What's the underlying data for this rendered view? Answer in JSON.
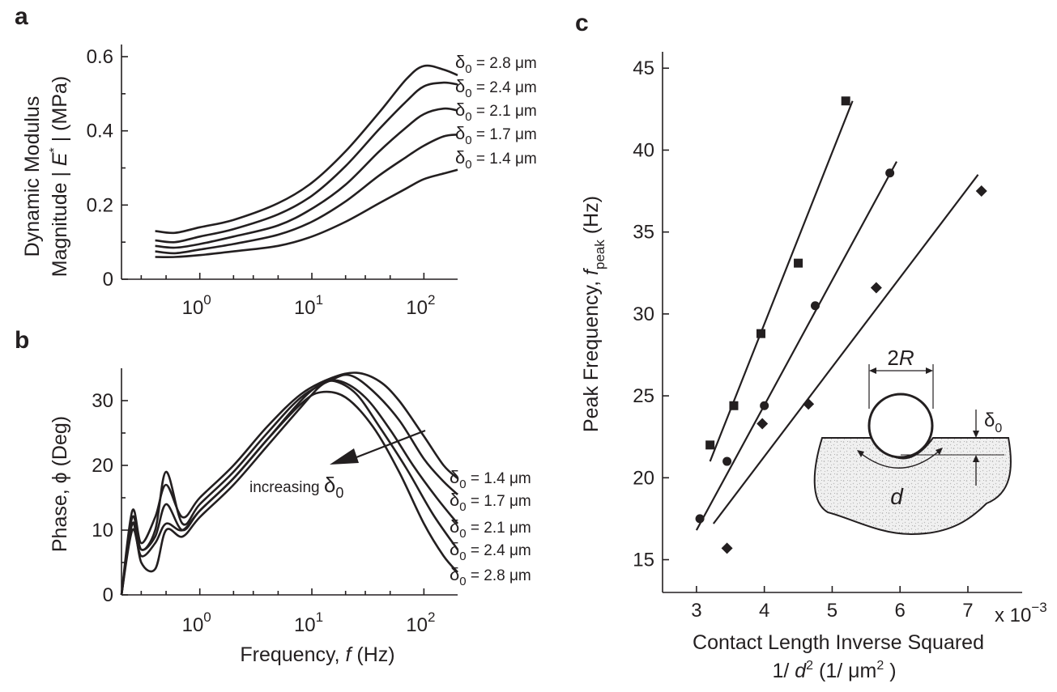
{
  "chart_data": [
    {
      "id": "a",
      "type": "line",
      "panel_label": "a",
      "ylabel_line1": "Dynamic Modulus",
      "ylabel_line2_prefix": "Magnitude | ",
      "ylabel_symbol": "E",
      "ylabel_sup": "*",
      "ylabel_suffix": " | (MPa)",
      "x_scale": "log",
      "xlim": [
        0.2,
        200
      ],
      "ylim": [
        0,
        0.6
      ],
      "xticks": [
        {
          "base": "10",
          "exp": "0",
          "value": 1
        },
        {
          "base": "10",
          "exp": "1",
          "value": 10
        },
        {
          "base": "10",
          "exp": "2",
          "value": 100
        }
      ],
      "yticks": [
        "0",
        "0.2",
        "0.4",
        "0.6"
      ],
      "series": [
        {
          "name": "δ0 = 2.8 μm",
          "label_base": "δ",
          "label_sub": "0",
          "label_rest": " = 2.8 μm",
          "x": [
            0.4,
            0.6,
            1,
            2,
            5,
            10,
            20,
            40,
            70,
            100,
            150,
            200
          ],
          "y": [
            0.13,
            0.125,
            0.14,
            0.16,
            0.205,
            0.26,
            0.345,
            0.45,
            0.54,
            0.575,
            0.565,
            0.55
          ]
        },
        {
          "name": "δ0 = 2.4 μm",
          "label_base": "δ",
          "label_sub": "0",
          "label_rest": " = 2.4 μm",
          "x": [
            0.4,
            0.6,
            1,
            2,
            5,
            10,
            20,
            40,
            70,
            100,
            150,
            200
          ],
          "y": [
            0.105,
            0.1,
            0.115,
            0.135,
            0.175,
            0.225,
            0.305,
            0.405,
            0.48,
            0.52,
            0.53,
            0.525
          ]
        },
        {
          "name": "δ0 = 2.1 μm",
          "label_base": "δ",
          "label_sub": "0",
          "label_rest": " = 2.1 μm",
          "x": [
            0.4,
            0.6,
            1,
            2,
            5,
            10,
            20,
            40,
            70,
            100,
            150,
            200
          ],
          "y": [
            0.09,
            0.085,
            0.095,
            0.115,
            0.145,
            0.19,
            0.255,
            0.345,
            0.41,
            0.445,
            0.46,
            0.455
          ]
        },
        {
          "name": "δ0 = 1.7 μm",
          "label_base": "δ",
          "label_sub": "0",
          "label_rest": " = 1.7 μm",
          "x": [
            0.4,
            0.6,
            1,
            2,
            5,
            10,
            20,
            40,
            70,
            100,
            150,
            200
          ],
          "y": [
            0.075,
            0.07,
            0.08,
            0.095,
            0.12,
            0.155,
            0.21,
            0.28,
            0.33,
            0.36,
            0.385,
            0.39
          ]
        },
        {
          "name": "δ0 = 1.4 μm",
          "label_base": "δ",
          "label_sub": "0",
          "label_rest": " = 1.4 μm",
          "x": [
            0.4,
            0.6,
            1,
            2,
            5,
            10,
            20,
            40,
            70,
            100,
            150,
            200
          ],
          "y": [
            0.06,
            0.06,
            0.065,
            0.075,
            0.09,
            0.115,
            0.155,
            0.205,
            0.245,
            0.27,
            0.285,
            0.295
          ]
        }
      ]
    },
    {
      "id": "b",
      "type": "line",
      "panel_label": "b",
      "ylabel": "Phase, ϕ (Deg)",
      "xlabel_prefix": "Frequency, ",
      "xlabel_symbol": "f",
      "xlabel_suffix": "  (Hz)",
      "x_scale": "log",
      "xlim": [
        0.2,
        200
      ],
      "ylim": [
        0,
        35
      ],
      "xticks": [
        {
          "base": "10",
          "exp": "0",
          "value": 1
        },
        {
          "base": "10",
          "exp": "1",
          "value": 10
        },
        {
          "base": "10",
          "exp": "2",
          "value": 100
        }
      ],
      "yticks": [
        "0",
        "10",
        "20",
        "30"
      ],
      "annotation": {
        "text": "increasing ",
        "symbol": "δ",
        "sub": "0"
      },
      "series": [
        {
          "name": "δ0 = 1.4 μm",
          "label_base": "δ",
          "label_sub": "0",
          "label_rest": " = 1.4 μm",
          "x": [
            0.2,
            0.25,
            0.3,
            0.4,
            0.5,
            0.7,
            1,
            2,
            4,
            8,
            15,
            25,
            40,
            60,
            100,
            150,
            200
          ],
          "y": [
            0,
            13,
            8,
            12,
            17,
            12,
            15,
            20,
            26,
            31,
            33.5,
            34.3,
            33,
            30,
            24.5,
            20,
            18
          ]
        },
        {
          "name": "δ0 = 1.7 μm",
          "label_base": "δ",
          "label_sub": "0",
          "label_rest": " = 1.7 μm",
          "x": [
            0.2,
            0.25,
            0.3,
            0.4,
            0.5,
            0.7,
            1,
            2,
            4,
            8,
            15,
            22,
            35,
            60,
            100,
            150,
            200
          ],
          "y": [
            0,
            12,
            7,
            10,
            19,
            11,
            14,
            19,
            25,
            30.5,
            33.2,
            33.9,
            31.5,
            27,
            21,
            17.5,
            15.5
          ]
        },
        {
          "name": "δ0 = 2.1 μm",
          "label_base": "δ",
          "label_sub": "0",
          "label_rest": " = 2.1 μm",
          "x": [
            0.2,
            0.25,
            0.3,
            0.4,
            0.5,
            0.7,
            1,
            2,
            4,
            8,
            12,
            18,
            30,
            50,
            80,
            130,
            200
          ],
          "y": [
            0,
            10,
            6,
            8,
            11,
            10,
            13,
            18,
            24,
            30,
            32.5,
            33,
            30.5,
            25.5,
            20,
            15,
            11
          ]
        },
        {
          "name": "δ0 = 2.4 μm",
          "label_base": "δ",
          "label_sub": "0",
          "label_rest": " = 2.4 μm",
          "x": [
            0.2,
            0.25,
            0.3,
            0.4,
            0.5,
            0.7,
            1,
            2,
            4,
            8,
            12,
            16,
            25,
            40,
            70,
            120,
            200
          ],
          "y": [
            0,
            11,
            5,
            4,
            10,
            9,
            12,
            17,
            23,
            29,
            32.3,
            33,
            31,
            26,
            19.5,
            12.5,
            7
          ]
        },
        {
          "name": "δ0 = 2.8 μm",
          "label_base": "δ",
          "label_sub": "0",
          "label_rest": " = 2.8 μm",
          "x": [
            0.2,
            0.25,
            0.3,
            0.4,
            0.5,
            0.7,
            1,
            2,
            4,
            8,
            12,
            20,
            35,
            60,
            100,
            150,
            200
          ],
          "y": [
            0,
            11,
            7,
            9,
            14,
            10,
            13,
            18,
            24,
            29.5,
            31.3,
            30.5,
            26,
            19,
            11,
            6,
            3.5
          ]
        }
      ]
    },
    {
      "id": "c",
      "type": "scatter",
      "panel_label": "c",
      "ylabel_prefix": "Peak Frequency, ",
      "ylabel_symbol": "f",
      "ylabel_sub": "peak",
      "ylabel_suffix": "  (Hz)",
      "xlabel_line1": "Contact Length Inverse Squared",
      "xlabel_line2_prefix": "1/ ",
      "xlabel_line2_symbol": "d",
      "xlabel_line2_sup": "2",
      "xlabel_line2_suffix": "  (1/ μm",
      "xlabel_line2_sup2": "2",
      "xlabel_line2_close": " )",
      "multiplier_base": "x 10",
      "multiplier_exp": "−3",
      "xlim": [
        2.5,
        7.8
      ],
      "ylim": [
        13,
        46
      ],
      "xticks": [
        "3",
        "4",
        "5",
        "6",
        "7"
      ],
      "yticks": [
        "15",
        "20",
        "25",
        "30",
        "35",
        "40",
        "45"
      ],
      "series": [
        {
          "marker": "square",
          "x": [
            3.2,
            3.55,
            3.95,
            4.5,
            5.2
          ],
          "y": [
            22,
            24.4,
            28.8,
            33.1,
            43
          ],
          "fit": {
            "x": [
              3.2,
              5.3
            ],
            "y": [
              21,
              43
            ]
          }
        },
        {
          "marker": "circle",
          "x": [
            3.05,
            3.45,
            4.0,
            4.75,
            5.85
          ],
          "y": [
            17.5,
            21,
            24.4,
            30.5,
            38.6
          ],
          "fit": {
            "x": [
              3.0,
              5.95
            ],
            "y": [
              16.8,
              39.3
            ]
          }
        },
        {
          "marker": "diamond",
          "x": [
            3.45,
            3.97,
            4.65,
            5.65,
            7.2
          ],
          "y": [
            15.7,
            23.3,
            24.5,
            31.6,
            37.5
          ],
          "fit": {
            "x": [
              3.25,
              7.15
            ],
            "y": [
              17.2,
              38.5
            ]
          }
        }
      ],
      "inset": {
        "label_2R_num": "2",
        "label_2R_sym": "R",
        "label_delta": "δ",
        "label_delta_sub": "0",
        "label_d": "d"
      }
    }
  ]
}
